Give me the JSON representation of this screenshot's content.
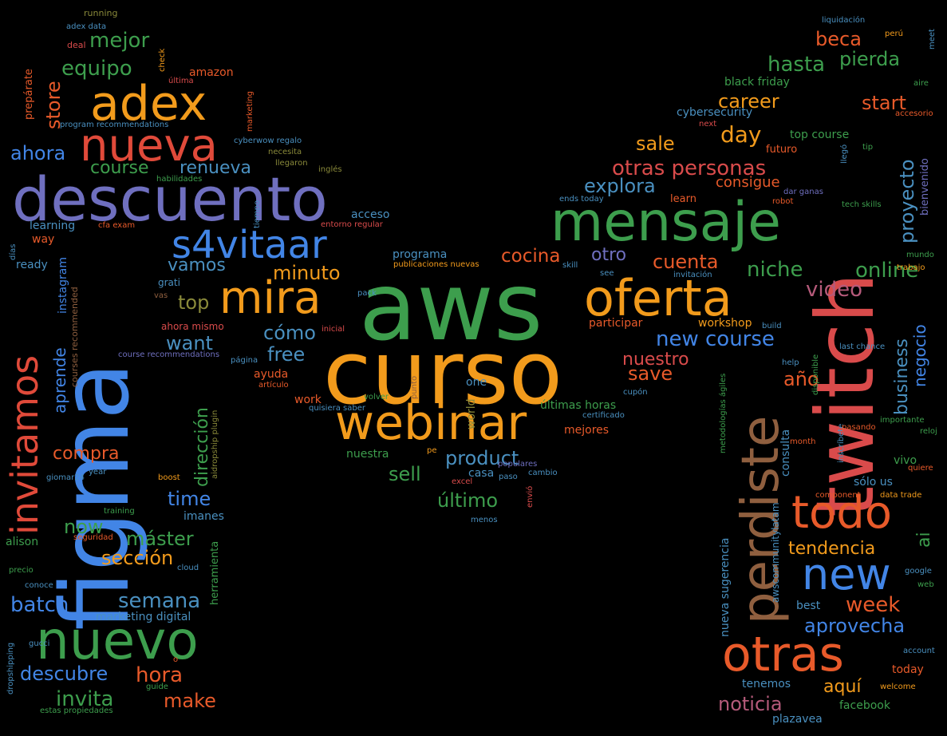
{
  "words": [
    {
      "text": "aws",
      "color": "#3d9e4d"
    },
    {
      "text": "curso",
      "color": "#f29b1c"
    },
    {
      "text": "figma",
      "color": "#4285e6"
    },
    {
      "text": "twitch",
      "color": "#d94b4b"
    },
    {
      "text": "descuento",
      "color": "#6f6fbf"
    },
    {
      "text": "mensaje",
      "color": "#3d9e4d"
    },
    {
      "text": "nuevo",
      "color": "#3d9e4d"
    },
    {
      "text": "oferta",
      "color": "#f29b1c"
    },
    {
      "text": "perdiste",
      "color": "#8f5f3f"
    },
    {
      "text": "webinar",
      "color": "#f29b1c"
    },
    {
      "text": "adex",
      "color": "#f29b1c"
    },
    {
      "text": "nueva",
      "color": "#e04a3a"
    },
    {
      "text": "mira",
      "color": "#f29b1c"
    },
    {
      "text": "otras",
      "color": "#e85a2a"
    },
    {
      "text": "todo",
      "color": "#e85a2a"
    },
    {
      "text": "new",
      "color": "#4285e6"
    },
    {
      "text": "s4vitaar",
      "color": "#4285e6"
    },
    {
      "text": "invitamos",
      "color": "#e04a3a"
    },
    {
      "text": "otras personas",
      "color": "#d94b4b"
    },
    {
      "text": "cocina",
      "color": "#e85a2a"
    },
    {
      "text": "mejor",
      "color": "#3d9e4d"
    },
    {
      "text": "equipo",
      "color": "#3d9e4d"
    },
    {
      "text": "store",
      "color": "#e85a2a"
    },
    {
      "text": "ahora",
      "color": "#4285e6"
    },
    {
      "text": "course",
      "color": "#3d9e4d"
    },
    {
      "text": "renueva",
      "color": "#4a90c0"
    },
    {
      "text": "beca",
      "color": "#e85a2a"
    },
    {
      "text": "pierda",
      "color": "#3d9e4d"
    },
    {
      "text": "hasta",
      "color": "#3d9e4d"
    },
    {
      "text": "start",
      "color": "#e85a2a"
    },
    {
      "text": "career",
      "color": "#f29b1c"
    },
    {
      "text": "day",
      "color": "#f29b1c"
    },
    {
      "text": "sale",
      "color": "#f29b1c"
    },
    {
      "text": "explora",
      "color": "#4a90c0"
    },
    {
      "text": "consigue",
      "color": "#e85a2a"
    },
    {
      "text": "cuenta",
      "color": "#e85a2a"
    },
    {
      "text": "otro",
      "color": "#6f6fbf"
    },
    {
      "text": "niche",
      "color": "#3d9e4d"
    },
    {
      "text": "online",
      "color": "#3d9e4d"
    },
    {
      "text": "video",
      "color": "#b55a7a"
    },
    {
      "text": "proyecto",
      "color": "#4a90c0"
    },
    {
      "text": "minuto",
      "color": "#f29b1c"
    },
    {
      "text": "vamos",
      "color": "#4a90c0"
    },
    {
      "text": "top",
      "color": "#8a8a3a"
    },
    {
      "text": "want",
      "color": "#4a90c0"
    },
    {
      "text": "cómo",
      "color": "#4a90c0"
    },
    {
      "text": "free",
      "color": "#4a90c0"
    },
    {
      "text": "new course",
      "color": "#4285e6"
    },
    {
      "text": "nuestro",
      "color": "#d94b4b"
    },
    {
      "text": "save",
      "color": "#e85a2a"
    },
    {
      "text": "año",
      "color": "#e85a2a"
    },
    {
      "text": "business",
      "color": "#4a90c0"
    },
    {
      "text": "negocio",
      "color": "#4285e6"
    },
    {
      "text": "compra",
      "color": "#e85a2a"
    },
    {
      "text": "aprende",
      "color": "#4285e6"
    },
    {
      "text": "dirección",
      "color": "#3d9e4d"
    },
    {
      "text": "product",
      "color": "#4a90c0"
    },
    {
      "text": "sell",
      "color": "#3d9e4d"
    },
    {
      "text": "último",
      "color": "#3d9e4d"
    },
    {
      "text": "time",
      "color": "#4285e6"
    },
    {
      "text": "now",
      "color": "#3d9e4d"
    },
    {
      "text": "máster",
      "color": "#3d9e4d"
    },
    {
      "text": "sección",
      "color": "#f29b1c"
    },
    {
      "text": "semana",
      "color": "#4a90c0"
    },
    {
      "text": "batch",
      "color": "#4285e6"
    },
    {
      "text": "hora",
      "color": "#e85a2a"
    },
    {
      "text": "descubre",
      "color": "#4285e6"
    },
    {
      "text": "invita",
      "color": "#3d9e4d"
    },
    {
      "text": "make",
      "color": "#e85a2a"
    },
    {
      "text": "tendencia",
      "color": "#f29b1c"
    },
    {
      "text": "ai",
      "color": "#3d9e4d"
    },
    {
      "text": "week",
      "color": "#e85a2a"
    },
    {
      "text": "aprovecha",
      "color": "#4285e6"
    },
    {
      "text": "aquí",
      "color": "#f29b1c"
    },
    {
      "text": "noticia",
      "color": "#b55a7a"
    },
    {
      "text": "consulta",
      "color": "#4a90c0"
    },
    {
      "text": "sólo us",
      "color": "#4a90c0"
    },
    {
      "text": "vivo",
      "color": "#3d9e4d"
    },
    {
      "text": "today",
      "color": "#e85a2a"
    },
    {
      "text": "tenemos",
      "color": "#4a90c0"
    },
    {
      "text": "facebook",
      "color": "#3d9e4d"
    },
    {
      "text": "plazavea",
      "color": "#4a90c0"
    },
    {
      "text": "best",
      "color": "#4a90c0"
    },
    {
      "text": "acceso",
      "color": "#4a90c0"
    },
    {
      "text": "programa",
      "color": "#4a90c0"
    },
    {
      "text": "últimas horas",
      "color": "#3d9e4d"
    },
    {
      "text": "mejores",
      "color": "#e85a2a"
    },
    {
      "text": "nuestra",
      "color": "#3d9e4d"
    },
    {
      "text": "ayuda",
      "color": "#e85a2a"
    },
    {
      "text": "work",
      "color": "#e85a2a"
    },
    {
      "text": "one",
      "color": "#4a90c0"
    },
    {
      "text": "world",
      "color": "#8a8a3a"
    },
    {
      "text": "casa",
      "color": "#4a90c0"
    },
    {
      "text": "participar",
      "color": "#e85a2a"
    },
    {
      "text": "workshop",
      "color": "#f29b1c"
    },
    {
      "text": "marketing digital",
      "color": "#4a90c0"
    },
    {
      "text": "amazon",
      "color": "#e85a2a"
    },
    {
      "text": "black friday",
      "color": "#3d9e4d"
    },
    {
      "text": "cybersecurity",
      "color": "#4a90c0"
    },
    {
      "text": "top course",
      "color": "#3d9e4d"
    },
    {
      "text": "futuro",
      "color": "#e85a2a"
    },
    {
      "text": "learning",
      "color": "#4a90c0"
    },
    {
      "text": "way",
      "color": "#e85a2a"
    },
    {
      "text": "ready",
      "color": "#4a90c0"
    },
    {
      "text": "instagram",
      "color": "#4285e6"
    },
    {
      "text": "courses recommended",
      "color": "#8f5f3f"
    },
    {
      "text": "ahora mismo",
      "color": "#d94b4b"
    },
    {
      "text": "course recommendations",
      "color": "#6f6fbf"
    },
    {
      "text": "alison",
      "color": "#3d9e4d"
    },
    {
      "text": "imanes",
      "color": "#4a90c0"
    },
    {
      "text": "herramienta",
      "color": "#3d9e4d"
    },
    {
      "text": "aidropship plugin",
      "color": "#8a8a3a"
    },
    {
      "text": "nueva sugerencia",
      "color": "#4a90c0"
    },
    {
      "text": "awscommunitylatam",
      "color": "#4a90c0"
    },
    {
      "text": "bienvenido",
      "color": "#6f6fbf"
    },
    {
      "text": "running",
      "color": "#8a8a3a"
    },
    {
      "text": "adex data",
      "color": "#4a90c0"
    },
    {
      "text": "deal",
      "color": "#d94b4b"
    },
    {
      "text": "check",
      "color": "#f29b1c"
    },
    {
      "text": "última",
      "color": "#d94b4b"
    },
    {
      "text": "prepárate",
      "color": "#e85a2a"
    },
    {
      "text": "program recommendations",
      "color": "#4a90c0"
    },
    {
      "text": "cyberwow regalo",
      "color": "#4a90c0"
    },
    {
      "text": "necesita",
      "color": "#8a8a3a"
    },
    {
      "text": "llegaron",
      "color": "#8a8a3a"
    },
    {
      "text": "inglés",
      "color": "#8a8a3a"
    },
    {
      "text": "habilidades",
      "color": "#3d9e4d"
    },
    {
      "text": "marketing",
      "color": "#e85a2a"
    },
    {
      "text": "tiempo",
      "color": "#4a90c0"
    },
    {
      "text": "entorno regular",
      "color": "#d94b4b"
    },
    {
      "text": "publicaciones nuevas",
      "color": "#f29b1c"
    },
    {
      "text": "cfa exam",
      "color": "#e85a2a"
    },
    {
      "text": "grati",
      "color": "#4a90c0"
    },
    {
      "text": "vas",
      "color": "#8f5f3f"
    },
    {
      "text": "pack",
      "color": "#4a90c0"
    },
    {
      "text": "inicial",
      "color": "#d94b4b"
    },
    {
      "text": "página",
      "color": "#4a90c0"
    },
    {
      "text": "artículo",
      "color": "#e85a2a"
    },
    {
      "text": "volver",
      "color": "#3d9e4d"
    },
    {
      "text": "punto",
      "color": "#8f5f3f"
    },
    {
      "text": "quisiera saber",
      "color": "#4a90c0"
    },
    {
      "text": "pe",
      "color": "#f29b1c"
    },
    {
      "text": "excel",
      "color": "#d94b4b"
    },
    {
      "text": "paso",
      "color": "#4a90c0"
    },
    {
      "text": "populares",
      "color": "#6f6fbf"
    },
    {
      "text": "cambio",
      "color": "#4a90c0"
    },
    {
      "text": "envió",
      "color": "#d94b4b"
    },
    {
      "text": "menos",
      "color": "#4a90c0"
    },
    {
      "text": "liquidación",
      "color": "#4a90c0"
    },
    {
      "text": "perú",
      "color": "#f29b1c"
    },
    {
      "text": "meet",
      "color": "#4a90c0"
    },
    {
      "text": "aire",
      "color": "#3d9e4d"
    },
    {
      "text": "accesorio",
      "color": "#e85a2a"
    },
    {
      "text": "next",
      "color": "#d94b4b"
    },
    {
      "text": "tip",
      "color": "#3d9e4d"
    },
    {
      "text": "llegó",
      "color": "#4a90c0"
    },
    {
      "text": "learn",
      "color": "#e85a2a"
    },
    {
      "text": "dar ganas",
      "color": "#6f6fbf"
    },
    {
      "text": "ends today",
      "color": "#4a90c0"
    },
    {
      "text": "robot",
      "color": "#e85a2a"
    },
    {
      "text": "tech skills",
      "color": "#3d9e4d"
    },
    {
      "text": "trabajo",
      "color": "#f29b1c"
    },
    {
      "text": "mundo",
      "color": "#3d9e4d"
    },
    {
      "text": "skill",
      "color": "#4a90c0"
    },
    {
      "text": "see",
      "color": "#4a90c0"
    },
    {
      "text": "invitación",
      "color": "#4a90c0"
    },
    {
      "text": "build",
      "color": "#4a90c0"
    },
    {
      "text": "disponible",
      "color": "#3d9e4d"
    },
    {
      "text": "help",
      "color": "#4a90c0"
    },
    {
      "text": "last chance",
      "color": "#4a90c0"
    },
    {
      "text": "metodologías ágiles",
      "color": "#3d9e4d"
    },
    {
      "text": "cupón",
      "color": "#4a90c0"
    },
    {
      "text": "certificado",
      "color": "#4a90c0"
    },
    {
      "text": "inscríbete",
      "color": "#4a90c0"
    },
    {
      "text": "importante",
      "color": "#3d9e4d"
    },
    {
      "text": "pasando",
      "color": "#e85a2a"
    },
    {
      "text": "reloj",
      "color": "#3d9e4d"
    },
    {
      "text": "month",
      "color": "#e85a2a"
    },
    {
      "text": "quiere",
      "color": "#e85a2a"
    },
    {
      "text": "component",
      "color": "#e85a2a"
    },
    {
      "text": "data trade",
      "color": "#f29b1c"
    },
    {
      "text": "google",
      "color": "#4a90c0"
    },
    {
      "text": "web",
      "color": "#3d9e4d"
    },
    {
      "text": "account",
      "color": "#4a90c0"
    },
    {
      "text": "welcome",
      "color": "#f29b1c"
    },
    {
      "text": "giomar24",
      "color": "#4a90c0"
    },
    {
      "text": "year",
      "color": "#4a90c0"
    },
    {
      "text": "boost",
      "color": "#f29b1c"
    },
    {
      "text": "training",
      "color": "#3d9e4d"
    },
    {
      "text": "seguridad",
      "color": "#e85a2a"
    },
    {
      "text": "cloud",
      "color": "#4a90c0"
    },
    {
      "text": "precio",
      "color": "#3d9e4d"
    },
    {
      "text": "conoce",
      "color": "#4a90c0"
    },
    {
      "text": "gucci",
      "color": "#4a90c0"
    },
    {
      "text": "dropshipping",
      "color": "#4a90c0"
    },
    {
      "text": "días",
      "color": "#4a90c0"
    },
    {
      "text": "guide",
      "color": "#3d9e4d"
    },
    {
      "text": "o",
      "color": "#e85a2a"
    },
    {
      "text": "estas propiedades",
      "color": "#3d9e4d"
    }
  ]
}
